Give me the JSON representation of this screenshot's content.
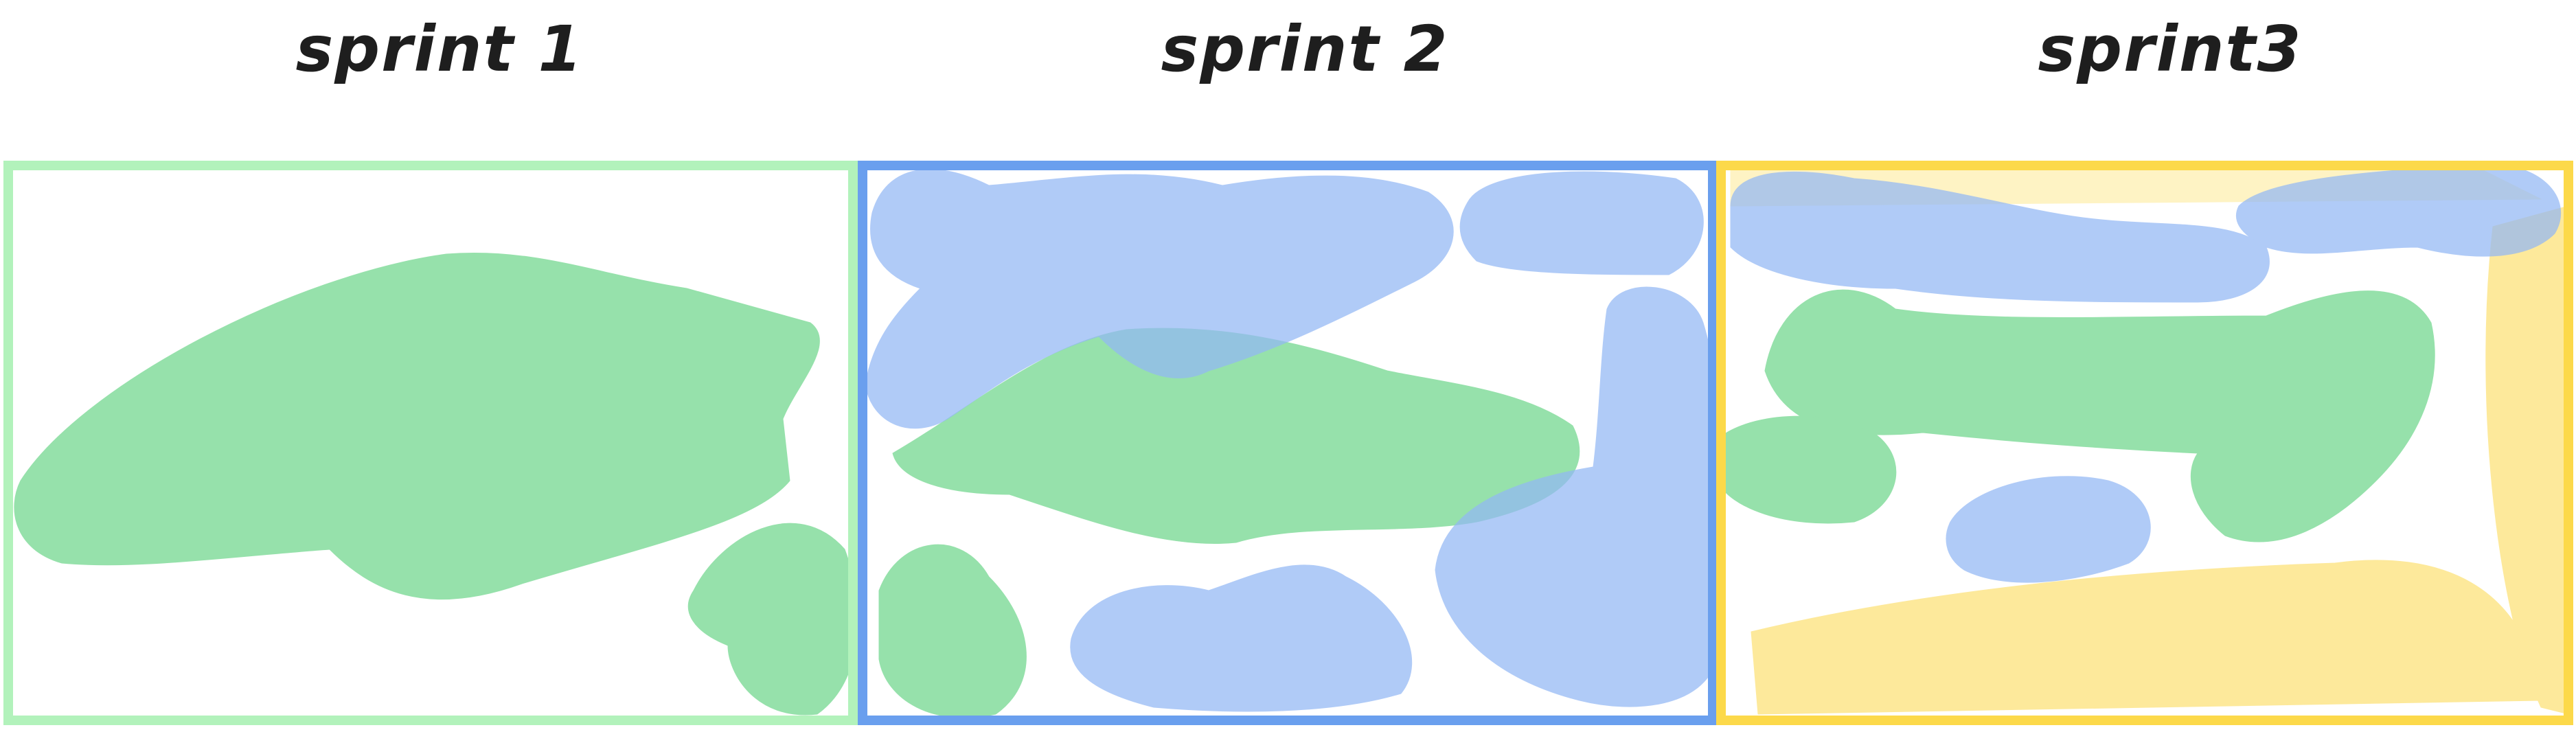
{
  "sprints": [
    {
      "label": "sprint 1",
      "frame_color": "#b2f2bb"
    },
    {
      "label": "sprint 2",
      "frame_color": "#6a9fee"
    },
    {
      "label": "sprint3",
      "frame_color": "#fcd94a"
    }
  ],
  "colors": {
    "green": "#6fd68c",
    "blue": "#93b8f5",
    "yellow": "#fde68a"
  }
}
